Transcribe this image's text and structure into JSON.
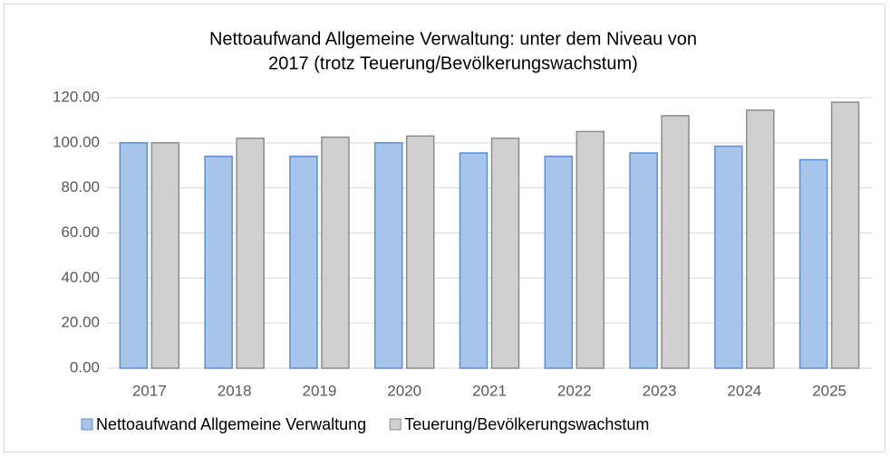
{
  "chart_data": {
    "type": "bar",
    "title": [
      "Nettoaufwand Allgemeine Verwaltung: unter dem Niveau von",
      "2017 (trotz Teuerung/Bevölkerungswachstum)"
    ],
    "categories": [
      "2017",
      "2018",
      "2019",
      "2020",
      "2021",
      "2022",
      "2023",
      "2024",
      "2025"
    ],
    "series": [
      {
        "name": "Nettoaufwand Allgemeine Verwaltung",
        "color": "#a7c4ea",
        "edgecolor": "#5b8fd0",
        "values": [
          100,
          94,
          94,
          100,
          95.5,
          94,
          95.5,
          98.5,
          92.5
        ]
      },
      {
        "name": "Teuerung/Bevölkerungswachstum",
        "color": "#d0d0d0",
        "edgecolor": "#8c8c8c",
        "values": [
          100,
          102,
          102.5,
          103,
          102,
          105,
          112,
          114.5,
          118
        ]
      }
    ],
    "ylim": [
      0,
      120
    ],
    "yticks": [
      {
        "value": 0,
        "label": "0.00"
      },
      {
        "value": 20,
        "label": "20.00"
      },
      {
        "value": 40,
        "label": "40.00"
      },
      {
        "value": 60,
        "label": "60.00"
      },
      {
        "value": 80,
        "label": "80.00"
      },
      {
        "value": 100,
        "label": "100.00"
      },
      {
        "value": 120,
        "label": "120.00"
      }
    ],
    "grid": true,
    "legend": "bottom"
  }
}
